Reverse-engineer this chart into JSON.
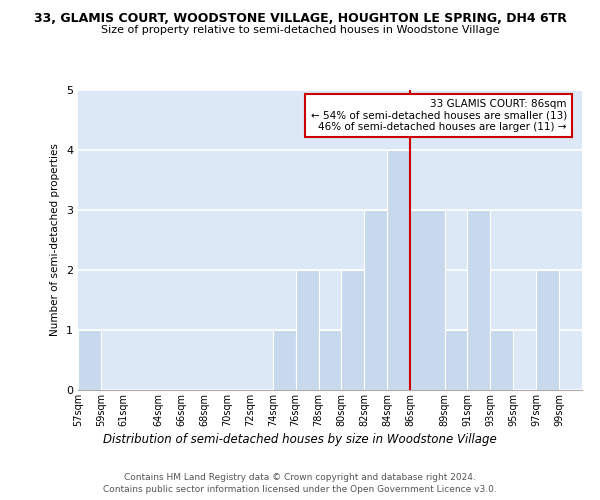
{
  "title": "33, GLAMIS COURT, WOODSTONE VILLAGE, HOUGHTON LE SPRING, DH4 6TR",
  "subtitle": "Size of property relative to semi-detached houses in Woodstone Village",
  "xlabel": "Distribution of semi-detached houses by size in Woodstone Village",
  "ylabel": "Number of semi-detached properties",
  "footer_line1": "Contains HM Land Registry data © Crown copyright and database right 2024.",
  "footer_line2": "Contains public sector information licensed under the Open Government Licence v3.0.",
  "annotation_title": "33 GLAMIS COURT: 86sqm",
  "annotation_line1": "← 54% of semi-detached houses are smaller (13)",
  "annotation_line2": "46% of semi-detached houses are larger (11) →",
  "property_value": 86,
  "bar_color": "#c8d8ed",
  "vline_color": "#cc0000",
  "annotation_box_edgecolor": "#cc0000",
  "bin_edges": [
    57,
    59,
    61,
    64,
    66,
    68,
    70,
    72,
    74,
    76,
    78,
    80,
    82,
    84,
    86,
    89,
    91,
    93,
    95,
    97,
    99,
    101
  ],
  "bin_labels": [
    "57sqm",
    "59sqm",
    "61sqm",
    "64sqm",
    "66sqm",
    "68sqm",
    "70sqm",
    "72sqm",
    "74sqm",
    "76sqm",
    "78sqm",
    "80sqm",
    "82sqm",
    "84sqm",
    "86sqm",
    "89sqm",
    "91sqm",
    "93sqm",
    "95sqm",
    "97sqm",
    "99sqm"
  ],
  "counts": [
    1,
    0,
    0,
    0,
    0,
    0,
    0,
    0,
    1,
    2,
    1,
    2,
    3,
    4,
    3,
    1,
    3,
    1,
    0,
    2,
    0
  ],
  "ylim": [
    0,
    5
  ],
  "yticks": [
    0,
    1,
    2,
    3,
    4,
    5
  ],
  "background_color": "#ffffff",
  "plot_bg_color": "#dce8f5"
}
